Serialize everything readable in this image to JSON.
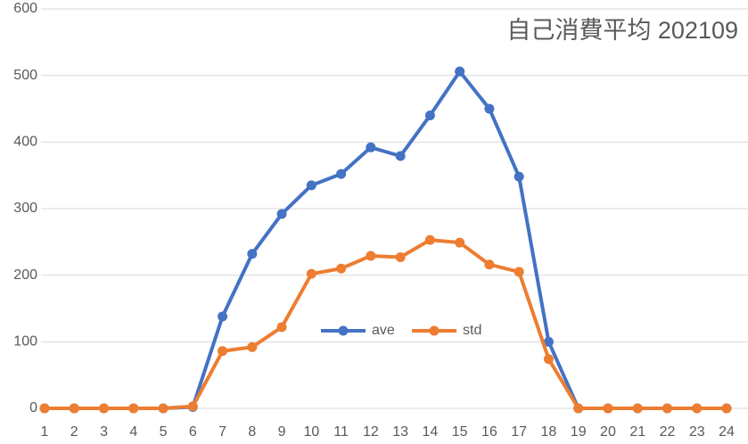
{
  "chart_data": {
    "type": "line",
    "title": "自己消費平均 202109",
    "categories": [
      1,
      2,
      3,
      4,
      5,
      6,
      7,
      8,
      9,
      10,
      11,
      12,
      13,
      14,
      15,
      16,
      17,
      18,
      19,
      20,
      21,
      22,
      23,
      24
    ],
    "series": [
      {
        "name": "ave",
        "color": "#4472c4",
        "values": [
          0,
          0,
          0,
          0,
          0,
          2,
          138,
          232,
          292,
          335,
          352,
          392,
          379,
          440,
          506,
          450,
          348,
          100,
          0,
          0,
          0,
          0,
          0,
          0
        ]
      },
      {
        "name": "std",
        "color": "#ed7d31",
        "values": [
          0,
          0,
          0,
          0,
          0,
          3,
          86,
          92,
          122,
          202,
          210,
          229,
          227,
          253,
          249,
          216,
          205,
          74,
          0,
          0,
          0,
          0,
          0,
          0
        ]
      }
    ],
    "ylim": [
      0,
      600
    ],
    "yticks": [
      0,
      100,
      200,
      300,
      400,
      500,
      600
    ],
    "grid": true,
    "legend": "center"
  }
}
